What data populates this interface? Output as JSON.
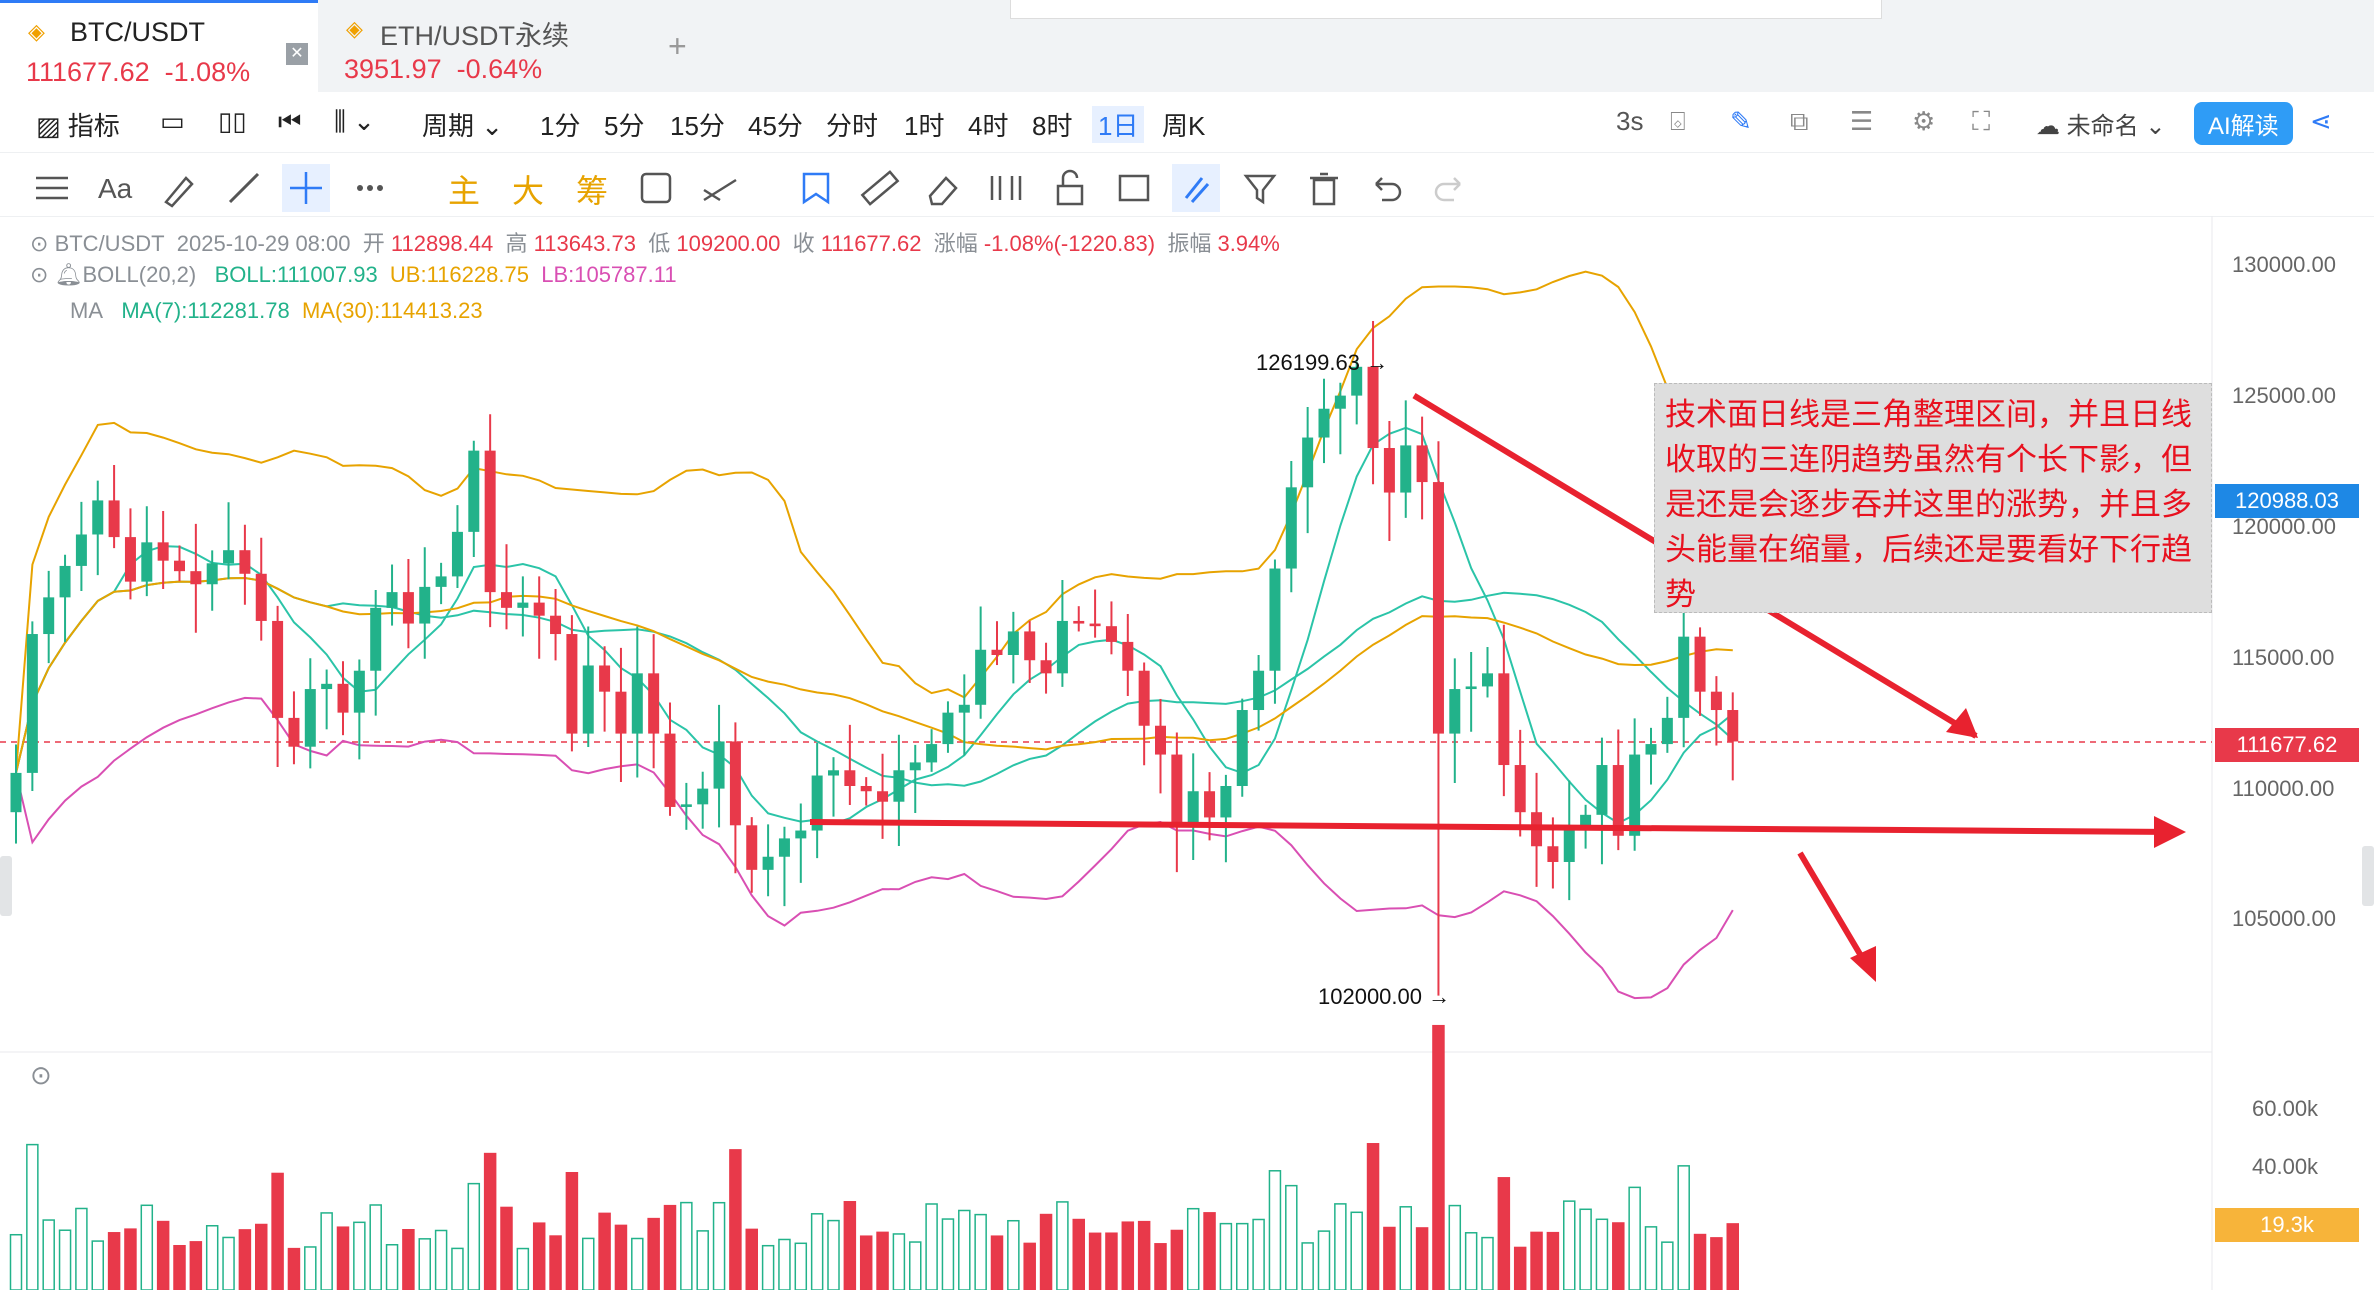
{
  "tabs": [
    {
      "symbol": "BTC/USDT",
      "price": "111677.62",
      "change": "-1.08%",
      "active": true
    },
    {
      "symbol": "ETH/USDT永续",
      "price": "3951.97",
      "change": "-0.64%",
      "active": false
    }
  ],
  "toolbar": {
    "indicators_label": "指标",
    "period_label": "周期",
    "intervals": [
      "1分",
      "5分",
      "15分",
      "45分",
      "分时",
      "1时",
      "4时",
      "8时",
      "1日",
      "周K"
    ],
    "selected_interval": "1日",
    "refresh_label": "3s",
    "layout_name": "未命名",
    "ai_label": "AI解读"
  },
  "drawing_tools": {
    "icons": [
      "menu-icon",
      "font-icon",
      "brush-icon",
      "line-icon",
      "crosshair-icon",
      "more-icon",
      "sticky-icon",
      "ruler-icon",
      "eraser-icon",
      "measure-icon",
      "lock-icon",
      "template-icon",
      "magnet-icon",
      "filter-icon",
      "trash-icon",
      "undo-icon",
      "redo-icon"
    ],
    "chinese_tools": [
      "主",
      "大",
      "筹"
    ]
  },
  "ohlc": {
    "symbol": "BTC/USDT",
    "datetime": "2025-10-29 08:00",
    "open_label": "开",
    "open": "112898.44",
    "high_label": "高",
    "high": "113643.73",
    "low_label": "低",
    "low": "109200.00",
    "close_label": "收",
    "close": "111677.62",
    "chg_label": "涨幅",
    "chg": "-1.08%(-1220.83)",
    "amp_label": "振幅",
    "amp": "3.94%"
  },
  "boll": {
    "name": "BOLL(20,2)",
    "boll": "BOLL:111007.93",
    "ub": "UB:116228.75",
    "lb": "LB:105787.11"
  },
  "ma": {
    "name": "MA",
    "ma7": "MA(7):112281.78",
    "ma30": "MA(30):114413.23"
  },
  "price_axis": {
    "labels": [
      "130000.00",
      "125000.00",
      "120000.00",
      "115000.00",
      "110000.00",
      "105000.00"
    ],
    "tag_blue": "120988.03",
    "tag_red": "111677.62"
  },
  "vol_axis": {
    "labels": [
      "60.00k",
      "40.00k"
    ],
    "tag": "19.3k"
  },
  "chart_labels": {
    "high": "126199.63",
    "low": "102000.00"
  },
  "annotation": "技术面日线是三角整理区间，并且日线收取的三连阴趋势虽然有个长下影，但是还是会逐步吞并这里的涨势，并且多头能量在缩量，后续还是要看好下行趋势",
  "colors": {
    "up": "#22b28a",
    "down": "#e8394a",
    "accent": "#2f7bf6",
    "ma7": "#2bc4a8",
    "ma30": "#e7a300",
    "lb": "#d94fb3",
    "annot": "#e8111f",
    "vol_tag": "#f7b43a"
  },
  "chart_data": {
    "type": "candlestick",
    "closes": [
      110500,
      115800,
      117200,
      118400,
      119600,
      120900,
      119500,
      117800,
      119300,
      118600,
      118200,
      117700,
      118500,
      119000,
      118100,
      116300,
      112600,
      111500,
      113700,
      113900,
      112800,
      114400,
      116800,
      117400,
      116200,
      117600,
      118000,
      119700,
      122800,
      117400,
      116800,
      117000,
      116500,
      115800,
      112000,
      114600,
      113600,
      112000,
      114300,
      112000,
      109200,
      109300,
      109900,
      111700,
      108500,
      106800,
      107300,
      108000,
      108300,
      110400,
      110600,
      110000,
      109800,
      109400,
      110600,
      110900,
      111600,
      112800,
      113100,
      115200,
      115000,
      115900,
      114800,
      114300,
      116300,
      116200,
      116100,
      115500,
      114400,
      112300,
      111200,
      108500,
      109800,
      108800,
      110000,
      112900,
      114400,
      118300,
      121400,
      123300,
      124400,
      124900,
      126000,
      122900,
      121200,
      123000,
      121600,
      112000,
      113700,
      113800,
      114300,
      110800,
      109000,
      107700,
      107100,
      108500,
      108900,
      110800,
      108100,
      111200,
      111600,
      112600,
      115700,
      113600,
      112900,
      111700
    ],
    "ylim": [
      100000,
      130000
    ],
    "high_label": "126199.63",
    "low_label": "102000.00"
  }
}
